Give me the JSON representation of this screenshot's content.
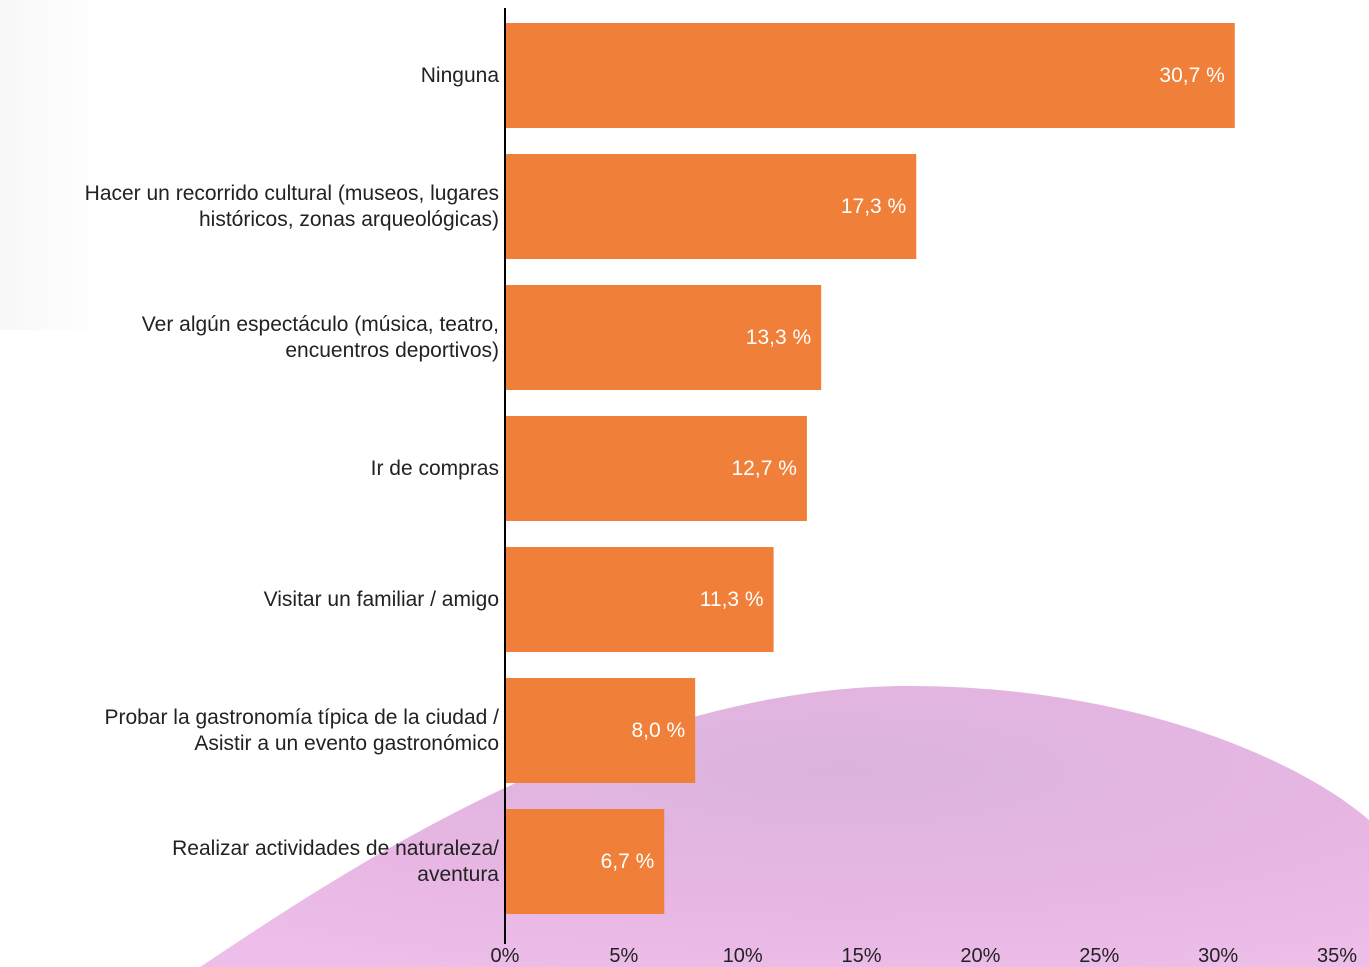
{
  "chart_data": {
    "type": "bar",
    "orientation": "horizontal",
    "title": "",
    "xlabel": "",
    "ylabel": "",
    "categories": [
      [
        "Ninguna"
      ],
      [
        "Hacer un recorrido cultural (museos, lugares",
        "históricos, zonas arqueológicas)"
      ],
      [
        "Ver algún espectáculo (música, teatro,",
        "encuentros deportivos)"
      ],
      [
        "Ir de compras"
      ],
      [
        "Visitar un familiar / amigo"
      ],
      [
        "Probar la gastronomía típica de la ciudad /",
        "Asistir a un evento gastronómico"
      ],
      [
        "Realizar actividades de naturaleza/",
        "aventura"
      ]
    ],
    "values": [
      30.7,
      17.3,
      13.3,
      12.7,
      11.3,
      8.0,
      6.7
    ],
    "value_labels": [
      "30,7 %",
      "17,3 %",
      "13,3 %",
      "12,7 %",
      "11,3 %",
      "8,0 %",
      "6,7 %"
    ],
    "xlim": [
      0,
      35
    ],
    "xticks": [
      0,
      5,
      10,
      15,
      20,
      25,
      30,
      35
    ],
    "xtick_labels": [
      "0%",
      "5%",
      "10%",
      "15%",
      "20%",
      "25%",
      "30%",
      "35%"
    ],
    "grid": false,
    "legend": "none",
    "bar_color": "#F08039",
    "axis_color": "#000000",
    "background_color": "#ffffff",
    "decoration_color": "#E3A6DC"
  }
}
